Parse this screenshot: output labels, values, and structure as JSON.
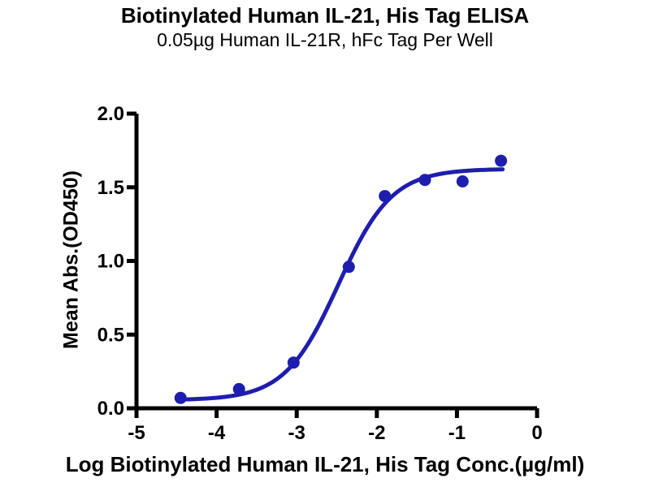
{
  "chart_data": {
    "type": "scatter",
    "title": "Biotinylated Human IL-21, His Tag ELISA",
    "subtitle": "0.05µg Human IL-21R, hFc Tag Per Well",
    "xlabel": "Log Biotinylated Human IL-21, His Tag Conc.(µg/ml)",
    "ylabel": "Mean Abs.(OD450)",
    "xlim": [
      -5,
      0
    ],
    "ylim": [
      0,
      2
    ],
    "x_ticks": [
      "-5",
      "-4",
      "-3",
      "-2",
      "-1",
      "0"
    ],
    "y_ticks": [
      "0.0",
      "0.5",
      "1.0",
      "1.5",
      "2.0"
    ],
    "grid": false,
    "legend": "none",
    "axis_color": "#000000",
    "series": [
      {
        "name": "Biotinylated Human IL-21, His Tag",
        "marker": "circle",
        "color": "#1e1eae",
        "points": [
          {
            "x": -4.45,
            "y": 0.07
          },
          {
            "x": -3.72,
            "y": 0.13
          },
          {
            "x": -3.04,
            "y": 0.31
          },
          {
            "x": -2.35,
            "y": 0.96
          },
          {
            "x": -1.9,
            "y": 1.44
          },
          {
            "x": -1.4,
            "y": 1.55
          },
          {
            "x": -0.93,
            "y": 1.54
          },
          {
            "x": -0.45,
            "y": 1.68
          }
        ]
      }
    ],
    "fit_curve": {
      "model": "4PL-sigmoid",
      "bottom": 0.055,
      "top": 1.625,
      "log_ec50": -2.48,
      "hill_slope": 1.3,
      "x_start": -4.45,
      "x_end": -0.43,
      "color": "#1e1eae"
    }
  }
}
